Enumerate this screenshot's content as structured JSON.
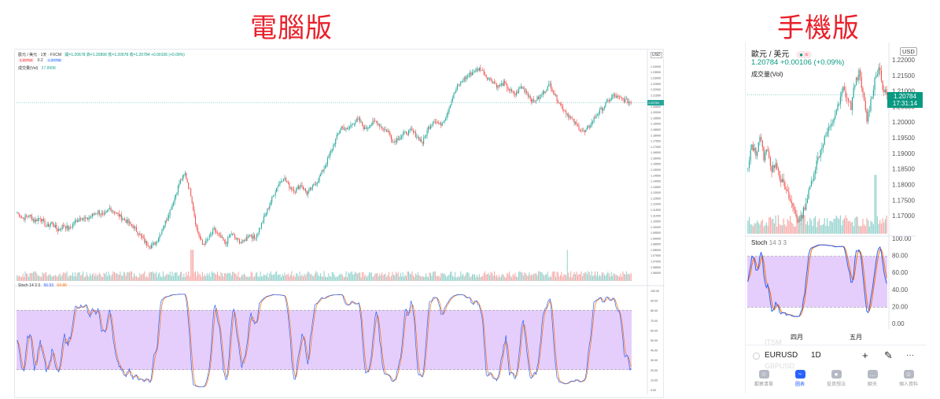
{
  "headings": {
    "desktop": "電腦版",
    "mobile": "手機版"
  },
  "desktop": {
    "symbol": "歐元 / 美元 · 1天 · FXCM",
    "ohlc": "開=1.20678 高=1.20899 低=1.20678 收=1.20784 +0.00106 (+0.09%)",
    "sell_tag": "1.20784",
    "spread": "0.2",
    "buy_tag": "1.20786",
    "volume_label": "成交量(Vol)",
    "volume_value": "27.899K",
    "stoch_label": "Stoch 14 3 3",
    "stoch_k": "56.93",
    "stoch_d": "64.86",
    "currency": "USD",
    "last_price_tag": "1.20784"
  },
  "mobile": {
    "symbol": "歐元 / 美元",
    "status_icon": "≈",
    "price_line": "1.20784 +0.00106 (+0.09%)",
    "volume_label": "成交量(Vol)",
    "currency": "USD",
    "price_tag": "1.20784",
    "price_tag_time": "17:31:14",
    "stoch_label": "Stoch",
    "stoch_params": "14 3 3",
    "months": [
      "四月",
      "五月"
    ],
    "toolbar": {
      "symbol": "EURUSD",
      "resolution": "1D",
      "add_icon": "+",
      "draw_icon": "✎",
      "more_icon": "···"
    },
    "tabs": [
      {
        "label": "觀察清單",
        "icon": "watchlist-icon"
      },
      {
        "label": "圖表",
        "icon": "chart-icon"
      },
      {
        "label": "投資想法",
        "icon": "ideas-icon"
      },
      {
        "label": "聊天",
        "icon": "chat-icon"
      },
      {
        "label": "個人資料",
        "icon": "profile-icon"
      }
    ],
    "faded_top": "ITSM",
    "faded_bottom": "GBPUSD"
  },
  "colors": {
    "up": "#26a69a",
    "down": "#ef5350",
    "stoch_k": "#2962ff",
    "stoch_d": "#ff6d00",
    "stoch_band": "#e1c6fb"
  },
  "chart_data": [
    {
      "type": "candlestick",
      "title": "歐元 / 美元 · 1天 · FXCM",
      "y_ticks": [
        "1.24000",
        "1.23500",
        "1.23000",
        "1.22500",
        "1.22000",
        "1.21500",
        "1.21000",
        "1.20500",
        "1.20000",
        "1.19500",
        "1.19000",
        "1.18500",
        "1.18000",
        "1.17500",
        "1.17000",
        "1.16500",
        "1.16000",
        "1.15500",
        "1.15000",
        "1.14500",
        "1.14000",
        "1.13500",
        "1.13000",
        "1.12500",
        "1.12000",
        "1.11500",
        "1.11000",
        "1.10500",
        "1.10000",
        "1.09500",
        "1.09000",
        "1.08500",
        "1.08000",
        "1.07500",
        "1.07000",
        "1.06500",
        "1.06000"
      ],
      "ylim": [
        1.058,
        1.242
      ],
      "close_path": [
        1.112,
        1.107,
        1.11,
        1.105,
        1.108,
        1.1,
        1.103,
        1.097,
        1.101,
        1.098,
        1.104,
        1.108,
        1.106,
        1.11,
        1.113,
        1.109,
        1.116,
        1.112,
        1.108,
        1.104,
        1.1,
        1.094,
        1.087,
        1.083,
        1.086,
        1.097,
        1.109,
        1.122,
        1.138,
        1.146,
        1.128,
        1.098,
        1.084,
        1.089,
        1.097,
        1.091,
        1.085,
        1.094,
        1.088,
        1.086,
        1.093,
        1.09,
        1.1,
        1.112,
        1.124,
        1.136,
        1.143,
        1.135,
        1.131,
        1.137,
        1.129,
        1.134,
        1.141,
        1.151,
        1.163,
        1.176,
        1.187,
        1.184,
        1.191,
        1.193,
        1.185,
        1.189,
        1.192,
        1.186,
        1.183,
        1.174,
        1.178,
        1.181,
        1.184,
        1.179,
        1.173,
        1.186,
        1.193,
        1.188,
        1.196,
        1.21,
        1.222,
        1.228,
        1.232,
        1.236,
        1.238,
        1.231,
        1.227,
        1.222,
        1.225,
        1.219,
        1.215,
        1.222,
        1.217,
        1.209,
        1.212,
        1.218,
        1.224,
        1.213,
        1.205,
        1.198,
        1.192,
        1.186,
        1.182,
        1.189,
        1.197,
        1.203,
        1.209,
        1.214,
        1.212,
        1.21,
        1.208
      ],
      "volume_note": "bars scaled relative, largest spike near index 30",
      "stochastic": {
        "params": "14 3 3",
        "k_last": 56.93,
        "d_last": 64.86,
        "bands": [
          20,
          80
        ],
        "y_ticks": [
          "100.00",
          "90.00",
          "80.00",
          "70.00",
          "60.00",
          "50.00",
          "40.00",
          "30.00",
          "20.00",
          "10.00",
          "0.00"
        ]
      }
    },
    {
      "type": "candlestick",
      "title": "歐元 / 美元",
      "y_ticks": [
        "1.22000",
        "1.21500",
        "1.21000",
        "1.20500",
        "1.20000",
        "1.19500",
        "1.19000",
        "1.18500",
        "1.18000",
        "1.17500",
        "1.17000"
      ],
      "ylim": [
        1.166,
        1.222
      ],
      "close_path": [
        1.185,
        1.193,
        1.19,
        1.196,
        1.189,
        1.192,
        1.184,
        1.188,
        1.183,
        1.18,
        1.177,
        1.174,
        1.171,
        1.168,
        1.172,
        1.176,
        1.181,
        1.186,
        1.19,
        1.194,
        1.197,
        1.199,
        1.203,
        1.206,
        1.211,
        1.208,
        1.205,
        1.213,
        1.216,
        1.209,
        1.201,
        1.207,
        1.214,
        1.218,
        1.211,
        1.209
      ],
      "months": [
        "四月",
        "五月"
      ],
      "stochastic": {
        "params": "14 3 3",
        "bands": [
          20,
          80
        ],
        "y_ticks": [
          "100.00",
          "80.00",
          "60.00",
          "40.00",
          "20.00",
          "0.00"
        ]
      }
    }
  ]
}
